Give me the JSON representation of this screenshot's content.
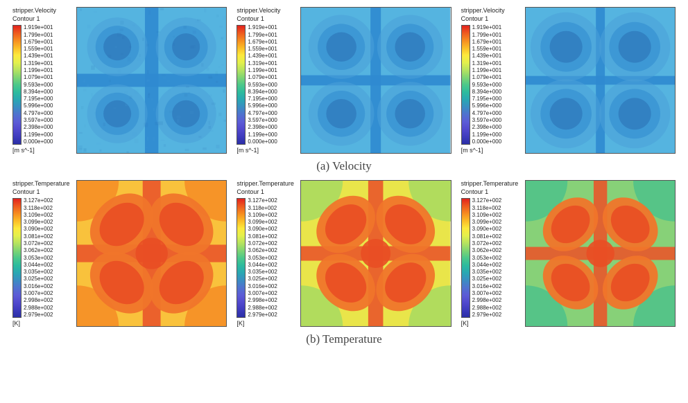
{
  "captions": {
    "a": "(a) Velocity",
    "b": "(b) Temperature"
  },
  "velocity": {
    "title": "stripper.Velocity",
    "subtitle": "Contour 1",
    "unit": "[m s^-1]",
    "ticks": [
      "1.919e+001",
      "1.799e+001",
      "1.679e+001",
      "1.559e+001",
      "1.439e+001",
      "1.319e+001",
      "1.199e+001",
      "1.079e+001",
      "9.593e+000",
      "8.394e+000",
      "7.195e+000",
      "5.996e+000",
      "4.797e+000",
      "3.597e+000",
      "2.398e+000",
      "1.199e+000",
      "0.000e+000"
    ],
    "gradient": [
      "#e2221e",
      "#ee5a1f",
      "#f68c20",
      "#fbbd27",
      "#fde93c",
      "#e3f04c",
      "#b6e35f",
      "#7fd573",
      "#4cc88a",
      "#2dbb9e",
      "#29a7b2",
      "#3a8dc2",
      "#4f72cf",
      "#5c5cd6",
      "#5249ce",
      "#3e3bbd",
      "#2b2fa7"
    ],
    "contour_bg": "#55b4e0",
    "contour_cross": "#2f8ad0",
    "contour_lobe": "#4aa0d8",
    "contour_dark": "#2a6fb2",
    "border": "#555555",
    "variants": [
      {
        "noise": 0.18,
        "lobe_scale": 0.92,
        "cross_width": 0.09
      },
      {
        "noise": 0.0,
        "lobe_scale": 1.0,
        "cross_width": 0.07
      },
      {
        "noise": 0.0,
        "lobe_scale": 1.08,
        "cross_width": 0.06
      }
    ]
  },
  "temperature": {
    "title": "stripper.Temperature",
    "subtitle": "Contour 1",
    "unit": "[K]",
    "ticks": [
      "3.127e+002",
      "3.118e+002",
      "3.109e+002",
      "3.099e+002",
      "3.090e+002",
      "3.081e+002",
      "3.072e+002",
      "3.062e+002",
      "3.053e+002",
      "3.044e+002",
      "3.035e+002",
      "3.025e+002",
      "3.016e+002",
      "3.007e+002",
      "2.998e+002",
      "2.988e+002",
      "2.979e+002"
    ],
    "gradient": [
      "#e2221e",
      "#ee5a1f",
      "#f68c20",
      "#fbbd27",
      "#fde93c",
      "#e3f04c",
      "#b6e35f",
      "#7fd573",
      "#4cc88a",
      "#2dbb9e",
      "#29a7b2",
      "#3a8dc2",
      "#4f72cf",
      "#5c5cd6",
      "#5249ce",
      "#3e3bbd",
      "#2b2fa7"
    ],
    "bg_colors": [
      "#f9c23c",
      "#e9e54a",
      "#87d178"
    ],
    "lobe_color": "#f0752a",
    "lobe_edge": "#e94e23",
    "cross_color": "#e9572a",
    "corner_fade": [
      "#f68c25",
      "#a7da60",
      "#4ec28a"
    ],
    "border": "#555555",
    "variants": [
      {
        "lobe_scale": 1.08,
        "cross_width": 0.12,
        "corner_fade_idx": 0,
        "bg_idx": 0
      },
      {
        "lobe_scale": 1.0,
        "cross_width": 0.1,
        "corner_fade_idx": 1,
        "bg_idx": 1
      },
      {
        "lobe_scale": 0.94,
        "cross_width": 0.09,
        "corner_fade_idx": 2,
        "bg_idx": 2
      }
    ]
  },
  "layout": {
    "row_height_vel": 212,
    "row_height_temp": 212,
    "legend_bar_h": 175
  }
}
